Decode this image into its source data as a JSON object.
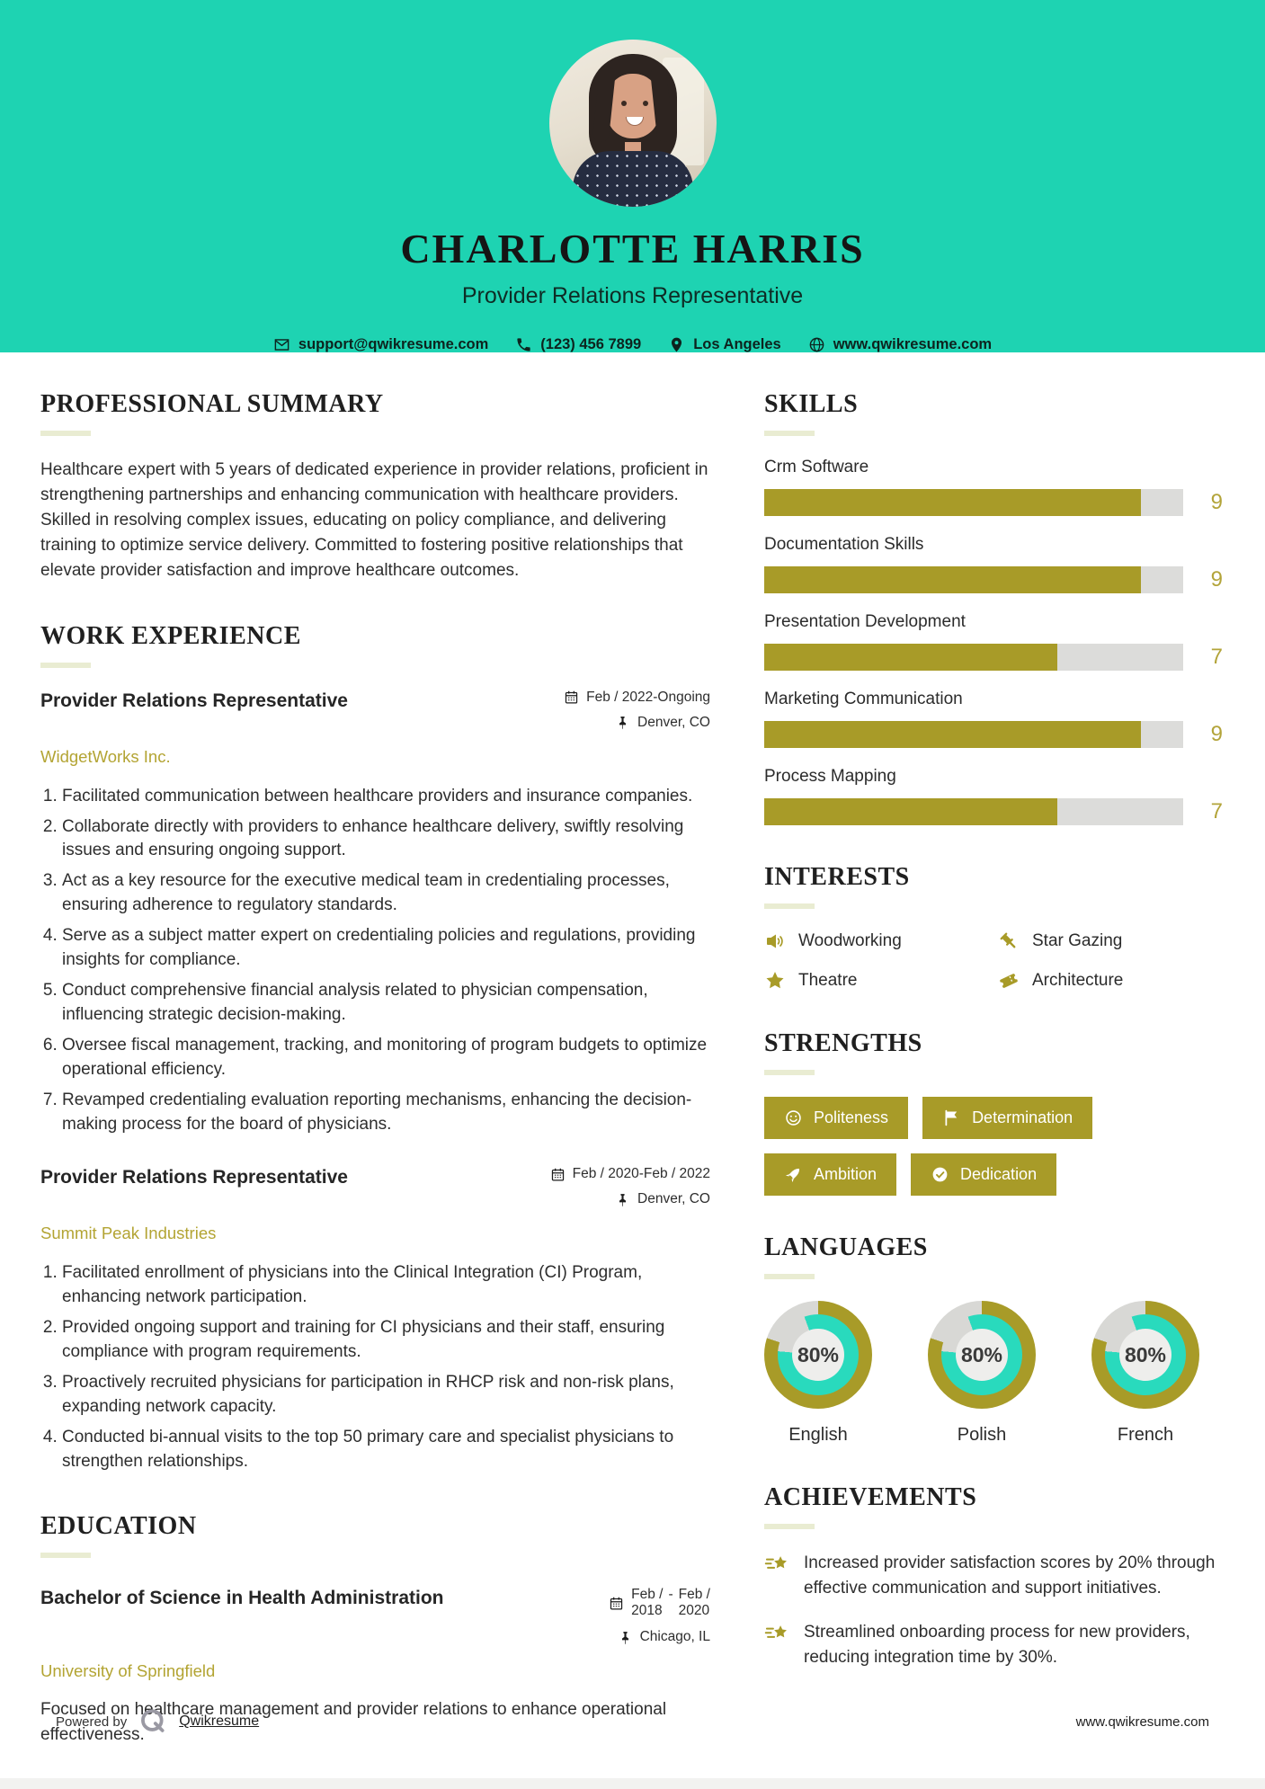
{
  "colors": {
    "accent_teal": "#1ed3b2",
    "accent_olive": "#a89b28",
    "donut_teal": "#29dabd",
    "donut_gray": "#d8d8d5",
    "donut_center": "#eeeeec",
    "heading_rule": "#e9ecd2",
    "track_gray": "#dcdcda"
  },
  "header": {
    "name": "CHARLOTTE HARRIS",
    "title": "Provider Relations Representative",
    "contact": [
      {
        "icon": "envelope-icon",
        "text": "support@qwikresume.com"
      },
      {
        "icon": "phone-icon",
        "text": "(123) 456 7899"
      },
      {
        "icon": "pin-icon",
        "text": "Los Angeles"
      },
      {
        "icon": "globe-icon",
        "text": "www.qwikresume.com"
      }
    ]
  },
  "summary": {
    "heading": "PROFESSIONAL SUMMARY",
    "text": "Healthcare expert with 5 years of dedicated experience in provider relations, proficient in strengthening partnerships and enhancing communication with healthcare providers. Skilled in resolving complex issues, educating on policy compliance, and delivering training to optimize service delivery. Committed to fostering positive relationships that elevate provider satisfaction and improve healthcare outcomes."
  },
  "experience": {
    "heading": "WORK EXPERIENCE",
    "jobs": [
      {
        "title": "Provider Relations Representative",
        "company": "WidgetWorks Inc.",
        "period": "Feb / 2022-Ongoing",
        "location": "Denver, CO",
        "bullets": [
          "Facilitated communication between healthcare providers and insurance companies.",
          "Collaborate directly with providers to enhance healthcare delivery, swiftly resolving issues and ensuring ongoing support.",
          "Act as a key resource for the executive medical team in credentialing processes, ensuring adherence to regulatory standards.",
          "Serve as a subject matter expert on credentialing policies and regulations, providing insights for compliance.",
          "Conduct comprehensive financial analysis related to physician compensation, influencing strategic decision-making.",
          "Oversee fiscal management, tracking, and monitoring of program budgets to optimize operational efficiency.",
          "Revamped credentialing evaluation reporting mechanisms, enhancing the decision-making process for the board of physicians."
        ]
      },
      {
        "title": "Provider Relations Representative",
        "company": "Summit Peak Industries",
        "period": "Feb / 2020-Feb / 2022",
        "location": "Denver, CO",
        "bullets": [
          "Facilitated enrollment of physicians into the Clinical Integration (CI) Program, enhancing network participation.",
          "Provided ongoing support and training for CI physicians and their staff, ensuring compliance with program requirements.",
          "Proactively recruited physicians for participation in RHCP risk and non-risk plans, expanding network capacity.",
          "Conducted bi-annual visits to the top 50 primary care and specialist physicians to strengthen relationships."
        ]
      }
    ]
  },
  "education": {
    "heading": "EDUCATION",
    "degree": "Bachelor of Science in Health Administration",
    "school": "University of Springfield",
    "period_start": [
      "Feb /",
      "2018"
    ],
    "period_sep": "-",
    "period_end": [
      "Feb /",
      "2020"
    ],
    "location": "Chicago, IL",
    "description": "Focused on healthcare management and provider relations to enhance operational effectiveness."
  },
  "skills": {
    "heading": "SKILLS",
    "max": 10,
    "items": [
      {
        "name": "Crm Software",
        "value": 9
      },
      {
        "name": "Documentation Skills",
        "value": 9
      },
      {
        "name": "Presentation Development",
        "value": 7
      },
      {
        "name": "Marketing Communication",
        "value": 9
      },
      {
        "name": "Process Mapping",
        "value": 7
      }
    ]
  },
  "interests": {
    "heading": "INTERESTS",
    "items": [
      {
        "icon": "megaphone-icon",
        "label": "Woodworking"
      },
      {
        "icon": "gavel-icon",
        "label": "Star Gazing"
      },
      {
        "icon": "star-icon",
        "label": "Theatre"
      },
      {
        "icon": "ticket-icon",
        "label": "Architecture"
      }
    ]
  },
  "strengths": {
    "heading": "STRENGTHS",
    "items": [
      {
        "icon": "smiley-icon",
        "label": "Politeness"
      },
      {
        "icon": "flag-icon",
        "label": "Determination"
      },
      {
        "icon": "rocket-icon",
        "label": "Ambition"
      },
      {
        "icon": "check-icon",
        "label": "Dedication"
      }
    ]
  },
  "languages": {
    "heading": "LANGUAGES",
    "items": [
      {
        "label": "English",
        "percent": 80,
        "percent_label": "80%"
      },
      {
        "label": "Polish",
        "percent": 80,
        "percent_label": "80%"
      },
      {
        "label": "French",
        "percent": 80,
        "percent_label": "80%"
      }
    ]
  },
  "achievements": {
    "heading": "ACHIEVEMENTS",
    "items": [
      "Increased provider satisfaction scores by 20% through effective communication and support initiatives.",
      "Streamlined onboarding process for new providers, reducing integration time by 30%."
    ]
  },
  "footer": {
    "powered_by": "Powered by",
    "brand": "Qwikresume",
    "website": "www.qwikresume.com"
  }
}
